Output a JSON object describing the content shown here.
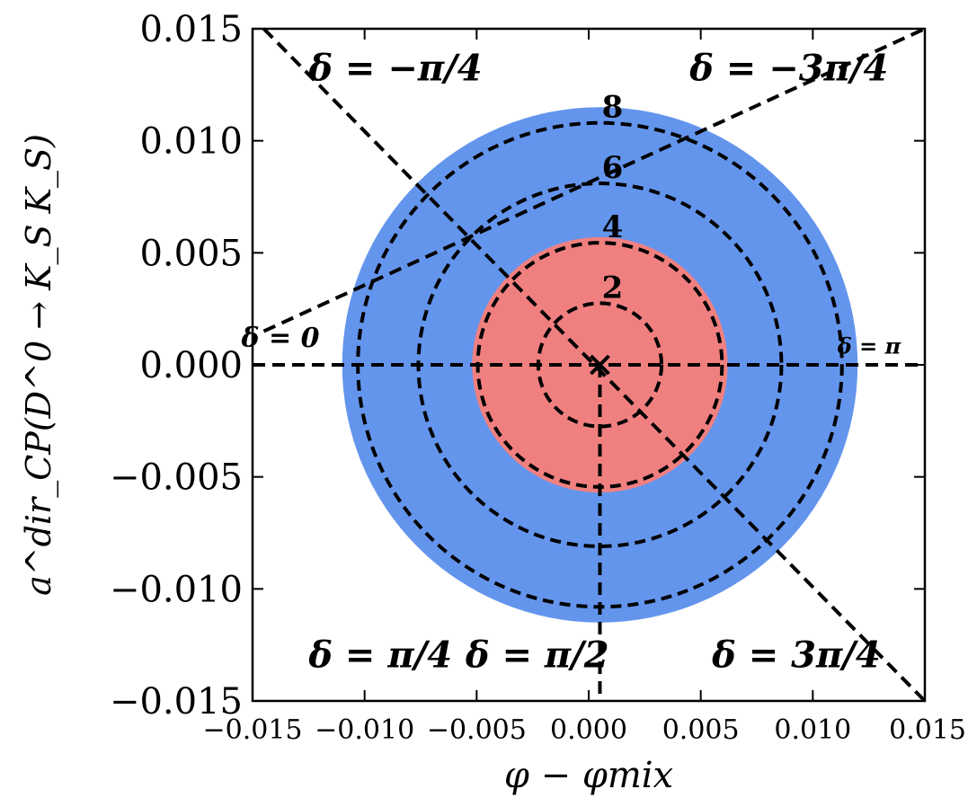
{
  "chart_data": {
    "type": "scatter",
    "xlabel": "φ − φmix",
    "ylabel": "a^dir_CP(D^0 → K_S K_S)",
    "xlim": [
      -0.015,
      0.015
    ],
    "ylim": [
      -0.015,
      0.015
    ],
    "x_ticks": [
      "−0.015",
      "−0.010",
      "−0.005",
      "0.000",
      "0.005",
      "0.010",
      "0.015"
    ],
    "y_ticks": [
      "0.015",
      "0.010",
      "0.005",
      "0.000",
      "−0.005",
      "−0.010",
      "−0.015"
    ],
    "center": {
      "x": 0.0005,
      "y": 0.0
    },
    "regions": [
      {
        "radius": 0.0115,
        "color": "#6495ed"
      },
      {
        "radius": 0.0057,
        "color": "#f08080"
      }
    ],
    "contours": [
      {
        "label": "2",
        "radius": 0.00275
      },
      {
        "label": "4",
        "radius": 0.00545
      },
      {
        "label": "6",
        "radius": 0.0081
      },
      {
        "label": "8",
        "radius": 0.0108
      }
    ],
    "lines": [
      {
        "from": [
          -0.0145,
          0.0015
        ],
        "to": [
          0.015,
          0.015
        ]
      },
      {
        "from": [
          -0.0145,
          0.015
        ],
        "to": [
          0.015,
          -0.015
        ]
      },
      {
        "from": [
          -0.015,
          0.0
        ],
        "to": [
          0.015,
          0.0
        ]
      },
      {
        "from": [
          0.0005,
          0.0
        ],
        "to": [
          0.0005,
          -0.015
        ]
      }
    ],
    "annotations": [
      {
        "text": "δ = −π/4",
        "x": -0.0125,
        "y": 0.0127,
        "size": 40
      },
      {
        "text": "δ = −3π/4",
        "x": 0.0045,
        "y": 0.0127,
        "size": 40
      },
      {
        "text": "δ = 0",
        "x": -0.0155,
        "y": 0.0008,
        "size": 30
      },
      {
        "text": "δ = π",
        "x": 0.0111,
        "y": 0.0005,
        "size": 24
      },
      {
        "text": "δ = π/4",
        "x": -0.0125,
        "y": -0.0135,
        "size": 40
      },
      {
        "text": "δ = π/2",
        "x": -0.0055,
        "y": -0.0135,
        "size": 40
      },
      {
        "text": "δ = 3π/4",
        "x": 0.0055,
        "y": -0.0135,
        "size": 40
      }
    ]
  }
}
